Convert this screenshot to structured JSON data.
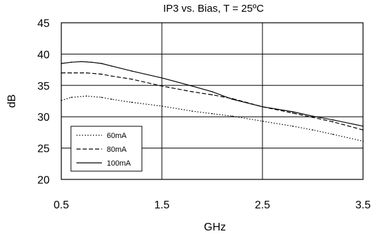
{
  "chart_data": {
    "type": "line",
    "title": "IP3 vs. Bias, T = 25ºC",
    "xlabel": "GHz",
    "ylabel": "dB",
    "xlim": [
      0.5,
      3.5
    ],
    "ylim": [
      20,
      45
    ],
    "xticks": [
      0.5,
      1.5,
      2.5,
      3.5
    ],
    "xtick_labels": [
      "0.5",
      "1.5",
      "2.5",
      "3.5"
    ],
    "yticks": [
      20,
      25,
      30,
      35,
      40,
      45
    ],
    "ytick_labels": [
      "20",
      "25",
      "30",
      "35",
      "40",
      "45"
    ],
    "grid": true,
    "legend_position": "bottom-left",
    "series": [
      {
        "name": "60mA",
        "line_style": "dotted",
        "x": [
          0.5,
          0.6,
          0.75,
          0.9,
          1.0,
          1.2,
          1.5,
          1.8,
          2.0,
          2.2,
          2.5,
          2.8,
          3.0,
          3.2,
          3.5
        ],
        "y": [
          32.6,
          33.1,
          33.3,
          33.1,
          32.8,
          32.3,
          31.7,
          30.9,
          30.5,
          30.1,
          29.3,
          28.5,
          27.9,
          27.2,
          26.1
        ]
      },
      {
        "name": "80mA",
        "line_style": "dashed",
        "x": [
          0.5,
          0.6,
          0.75,
          0.9,
          1.0,
          1.2,
          1.5,
          1.8,
          2.0,
          2.2,
          2.5,
          2.8,
          3.0,
          3.2,
          3.5
        ],
        "y": [
          37.0,
          37.0,
          37.0,
          36.8,
          36.5,
          36.0,
          34.9,
          34.0,
          33.5,
          32.9,
          31.6,
          30.6,
          29.9,
          29.2,
          27.9
        ]
      },
      {
        "name": "100mA",
        "line_style": "solid",
        "x": [
          0.5,
          0.6,
          0.7,
          0.8,
          0.9,
          1.0,
          1.2,
          1.5,
          1.8,
          2.0,
          2.2,
          2.5,
          2.8,
          3.0,
          3.2,
          3.5
        ],
        "y": [
          38.5,
          38.7,
          38.8,
          38.7,
          38.5,
          38.1,
          37.3,
          36.2,
          34.9,
          34.0,
          32.8,
          31.6,
          30.8,
          30.1,
          29.5,
          28.5
        ]
      }
    ]
  }
}
